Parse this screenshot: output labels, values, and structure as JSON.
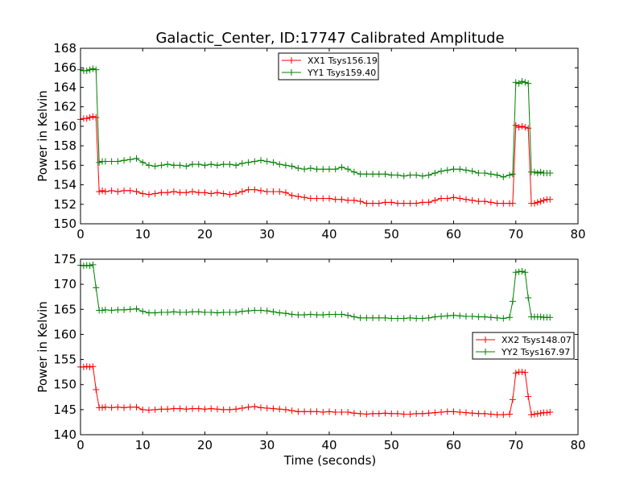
{
  "title": "Galactic_Center, ID:17747 Calibrated Amplitude",
  "xlabel": "Time (seconds)",
  "chart_data": [
    {
      "type": "line",
      "title": "Galactic_Center, ID:17747 Calibrated Amplitude",
      "xlabel": "",
      "ylabel": "Power in Kelvin",
      "xlim": [
        0,
        80
      ],
      "ylim": [
        150,
        168
      ],
      "xticks": [
        0,
        10,
        20,
        30,
        40,
        50,
        60,
        70,
        80
      ],
      "yticks": [
        150,
        152,
        154,
        156,
        158,
        160,
        162,
        164,
        166,
        168
      ],
      "legend": "top-center",
      "grid": false,
      "series": [
        {
          "name": "XX1 Tsys156.19",
          "color": "#ff0000",
          "x": [
            0.0,
            0.5,
            1.0,
            1.5,
            2.0,
            2.5,
            3.0,
            3.5,
            4.0,
            5.0,
            6.0,
            7.0,
            8.0,
            9.0,
            10.0,
            11.0,
            12.0,
            13.0,
            14.0,
            15.0,
            16.0,
            17.0,
            18.0,
            19.0,
            20.0,
            21.0,
            22.0,
            23.0,
            24.0,
            25.0,
            26.0,
            27.0,
            28.0,
            29.0,
            30.0,
            31.0,
            32.0,
            33.0,
            34.0,
            35.0,
            36.0,
            37.0,
            38.0,
            39.0,
            40.0,
            41.0,
            42.0,
            43.0,
            44.0,
            45.0,
            46.0,
            47.0,
            48.0,
            49.0,
            50.0,
            51.0,
            52.0,
            53.0,
            54.0,
            55.0,
            56.0,
            57.0,
            58.0,
            59.0,
            60.0,
            61.0,
            62.0,
            63.0,
            64.0,
            65.0,
            66.0,
            67.0,
            68.0,
            69.0,
            69.5,
            70.0,
            70.5,
            71.0,
            71.5,
            72.0,
            72.5,
            73.0,
            73.5,
            74.0,
            74.5,
            75.0,
            75.5
          ],
          "y": [
            160.7,
            160.8,
            160.8,
            160.9,
            161.0,
            160.9,
            153.3,
            153.4,
            153.3,
            153.4,
            153.3,
            153.4,
            153.4,
            153.3,
            153.1,
            153.0,
            153.1,
            153.2,
            153.2,
            153.3,
            153.2,
            153.2,
            153.3,
            153.2,
            153.2,
            153.1,
            153.2,
            153.1,
            153.0,
            153.1,
            153.3,
            153.5,
            153.5,
            153.4,
            153.3,
            153.3,
            153.3,
            153.2,
            152.9,
            152.8,
            152.7,
            152.6,
            152.6,
            152.6,
            152.6,
            152.5,
            152.5,
            152.4,
            152.4,
            152.3,
            152.1,
            152.1,
            152.1,
            152.2,
            152.2,
            152.1,
            152.1,
            152.1,
            152.1,
            152.2,
            152.2,
            152.4,
            152.6,
            152.6,
            152.7,
            152.6,
            152.5,
            152.4,
            152.3,
            152.3,
            152.2,
            152.1,
            152.1,
            152.1,
            152.1,
            160.1,
            159.9,
            160.0,
            159.9,
            159.8,
            152.1,
            152.1,
            152.2,
            152.3,
            152.4,
            152.5,
            152.5
          ]
        },
        {
          "name": "YY1 Tsys159.40",
          "color": "#008000",
          "x": [
            0.0,
            0.5,
            1.0,
            1.5,
            2.0,
            2.5,
            3.0,
            3.5,
            4.0,
            5.0,
            6.0,
            7.0,
            8.0,
            9.0,
            10.0,
            11.0,
            12.0,
            13.0,
            14.0,
            15.0,
            16.0,
            17.0,
            18.0,
            19.0,
            20.0,
            21.0,
            22.0,
            23.0,
            24.0,
            25.0,
            26.0,
            27.0,
            28.0,
            29.0,
            30.0,
            31.0,
            32.0,
            33.0,
            34.0,
            35.0,
            36.0,
            37.0,
            38.0,
            39.0,
            40.0,
            41.0,
            42.0,
            43.0,
            44.0,
            45.0,
            46.0,
            47.0,
            48.0,
            49.0,
            50.0,
            51.0,
            52.0,
            53.0,
            54.0,
            55.0,
            56.0,
            57.0,
            58.0,
            59.0,
            60.0,
            61.0,
            62.0,
            63.0,
            64.0,
            65.0,
            66.0,
            67.0,
            68.0,
            69.0,
            69.5,
            70.0,
            70.5,
            71.0,
            71.5,
            72.0,
            72.5,
            73.0,
            73.5,
            74.0,
            74.5,
            75.0,
            75.5
          ],
          "y": [
            165.8,
            165.7,
            165.7,
            165.8,
            165.9,
            165.8,
            156.3,
            156.4,
            156.4,
            156.4,
            156.4,
            156.5,
            156.6,
            156.7,
            156.3,
            156.0,
            155.9,
            156.0,
            156.1,
            156.0,
            156.0,
            155.9,
            156.1,
            156.1,
            156.0,
            156.1,
            156.0,
            156.1,
            156.1,
            156.0,
            156.2,
            156.3,
            156.4,
            156.5,
            156.4,
            156.3,
            156.1,
            156.0,
            155.9,
            155.7,
            155.6,
            155.7,
            155.6,
            155.6,
            155.6,
            155.6,
            155.8,
            155.6,
            155.3,
            155.1,
            155.1,
            155.1,
            155.1,
            155.1,
            155.0,
            155.0,
            154.9,
            155.0,
            155.0,
            154.9,
            155.0,
            155.2,
            155.4,
            155.5,
            155.6,
            155.6,
            155.5,
            155.4,
            155.2,
            155.2,
            155.1,
            155.0,
            154.8,
            155.0,
            155.1,
            164.5,
            164.4,
            164.6,
            164.5,
            164.4,
            155.3,
            155.3,
            155.2,
            155.3,
            155.2,
            155.2,
            155.2
          ]
        }
      ]
    },
    {
      "type": "line",
      "title": "",
      "xlabel": "Time (seconds)",
      "ylabel": "Power in Kelvin",
      "xlim": [
        0,
        80
      ],
      "ylim": [
        140,
        175
      ],
      "xticks": [
        0,
        10,
        20,
        30,
        40,
        50,
        60,
        70,
        80
      ],
      "yticks": [
        140,
        145,
        150,
        155,
        160,
        165,
        170,
        175
      ],
      "legend": "center-right",
      "grid": false,
      "series": [
        {
          "name": "XX2 Tsys148.07",
          "color": "#ff0000",
          "x": [
            0.0,
            0.5,
            1.0,
            1.5,
            2.0,
            2.5,
            3.0,
            3.5,
            4.0,
            5.0,
            6.0,
            7.0,
            8.0,
            9.0,
            10.0,
            11.0,
            12.0,
            13.0,
            14.0,
            15.0,
            16.0,
            17.0,
            18.0,
            19.0,
            20.0,
            21.0,
            22.0,
            23.0,
            24.0,
            25.0,
            26.0,
            27.0,
            28.0,
            29.0,
            30.0,
            31.0,
            32.0,
            33.0,
            34.0,
            35.0,
            36.0,
            37.0,
            38.0,
            39.0,
            40.0,
            41.0,
            42.0,
            43.0,
            44.0,
            45.0,
            46.0,
            47.0,
            48.0,
            49.0,
            50.0,
            51.0,
            52.0,
            53.0,
            54.0,
            55.0,
            56.0,
            57.0,
            58.0,
            59.0,
            60.0,
            61.0,
            62.0,
            63.0,
            64.0,
            65.0,
            66.0,
            67.0,
            68.0,
            69.0,
            69.5,
            70.0,
            70.5,
            71.0,
            71.5,
            72.0,
            72.5,
            73.0,
            73.5,
            74.0,
            74.5,
            75.0,
            75.5
          ],
          "y": [
            153.5,
            153.5,
            153.6,
            153.5,
            153.6,
            149.0,
            145.4,
            145.4,
            145.5,
            145.4,
            145.5,
            145.4,
            145.5,
            145.5,
            145.0,
            144.9,
            145.0,
            145.1,
            145.1,
            145.2,
            145.2,
            145.1,
            145.2,
            145.2,
            145.1,
            145.2,
            145.1,
            145.0,
            145.0,
            145.1,
            145.3,
            145.5,
            145.6,
            145.4,
            145.3,
            145.2,
            145.1,
            145.0,
            144.8,
            144.6,
            144.6,
            144.6,
            144.6,
            144.5,
            144.6,
            144.5,
            144.5,
            144.5,
            144.3,
            144.2,
            144.1,
            144.2,
            144.2,
            144.3,
            144.2,
            144.2,
            144.1,
            144.1,
            144.2,
            144.2,
            144.3,
            144.4,
            144.5,
            144.6,
            144.6,
            144.5,
            144.4,
            144.3,
            144.2,
            144.2,
            144.1,
            144.0,
            144.0,
            144.1,
            147.0,
            152.3,
            152.5,
            152.5,
            152.4,
            147.6,
            144.0,
            144.1,
            144.2,
            144.3,
            144.4,
            144.4,
            144.5
          ]
        },
        {
          "name": "YY2 Tsys167.97",
          "color": "#008000",
          "x": [
            0.0,
            0.5,
            1.0,
            1.5,
            2.0,
            2.5,
            3.0,
            3.5,
            4.0,
            5.0,
            6.0,
            7.0,
            8.0,
            9.0,
            10.0,
            11.0,
            12.0,
            13.0,
            14.0,
            15.0,
            16.0,
            17.0,
            18.0,
            19.0,
            20.0,
            21.0,
            22.0,
            23.0,
            24.0,
            25.0,
            26.0,
            27.0,
            28.0,
            29.0,
            30.0,
            31.0,
            32.0,
            33.0,
            34.0,
            35.0,
            36.0,
            37.0,
            38.0,
            39.0,
            40.0,
            41.0,
            42.0,
            43.0,
            44.0,
            45.0,
            46.0,
            47.0,
            48.0,
            49.0,
            50.0,
            51.0,
            52.0,
            53.0,
            54.0,
            55.0,
            56.0,
            57.0,
            58.0,
            59.0,
            60.0,
            61.0,
            62.0,
            63.0,
            64.0,
            65.0,
            66.0,
            67.0,
            68.0,
            69.0,
            69.5,
            70.0,
            70.5,
            71.0,
            71.5,
            72.0,
            72.5,
            73.0,
            73.5,
            74.0,
            74.5,
            75.0,
            75.5
          ],
          "y": [
            173.8,
            173.7,
            173.8,
            173.7,
            173.9,
            169.3,
            164.8,
            164.8,
            164.9,
            164.8,
            164.9,
            164.9,
            165.0,
            165.1,
            164.6,
            164.3,
            164.3,
            164.4,
            164.4,
            164.5,
            164.4,
            164.4,
            164.5,
            164.5,
            164.4,
            164.4,
            164.3,
            164.4,
            164.4,
            164.4,
            164.6,
            164.7,
            164.8,
            164.8,
            164.7,
            164.5,
            164.3,
            164.2,
            164.0,
            163.9,
            163.9,
            164.0,
            163.9,
            163.9,
            164.0,
            164.0,
            164.0,
            163.8,
            163.5,
            163.3,
            163.3,
            163.3,
            163.3,
            163.3,
            163.2,
            163.2,
            163.2,
            163.3,
            163.2,
            163.2,
            163.3,
            163.5,
            163.6,
            163.7,
            163.8,
            163.7,
            163.6,
            163.6,
            163.5,
            163.5,
            163.4,
            163.3,
            163.2,
            163.4,
            166.6,
            172.4,
            172.5,
            172.6,
            172.4,
            167.3,
            163.5,
            163.5,
            163.5,
            163.5,
            163.4,
            163.4,
            163.4
          ]
        }
      ]
    }
  ]
}
